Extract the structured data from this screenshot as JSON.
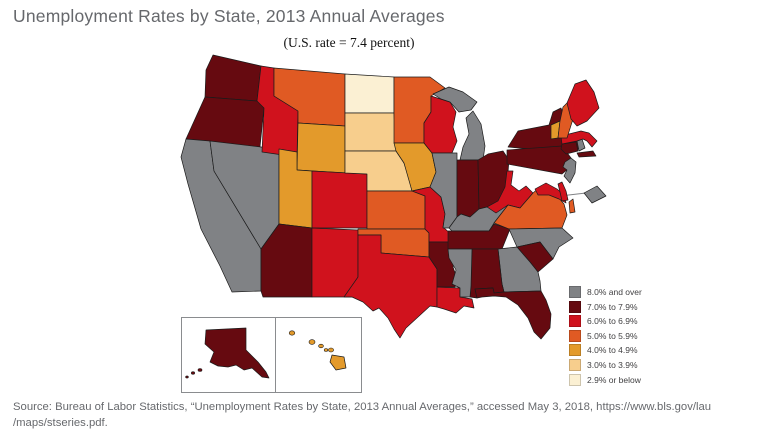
{
  "title": "Unemployment Rates by State, 2013 Annual Averages",
  "subtitle": "(U.S. rate = 7.4 percent)",
  "source": {
    "line1": "Source: Bureau of Labor Statistics, “Unemployment Rates by State, 2013 Annual Averages,” accessed May 3, 2018, https://www.bls.gov/lau",
    "line2": "/maps/stseries.pdf."
  },
  "legend": {
    "items": [
      {
        "label": "8.0% and over",
        "color": "#808285"
      },
      {
        "label": "7.0% to 7.9%",
        "color": "#660A10"
      },
      {
        "label": "6.0% to 6.9%",
        "color": "#D0121D"
      },
      {
        "label": "5.0% to 5.9%",
        "color": "#E05A23"
      },
      {
        "label": "4.0% to 4.9%",
        "color": "#E39A2B"
      },
      {
        "label": "3.0% to 3.9%",
        "color": "#F7CE8D"
      },
      {
        "label": "2.9% or below",
        "color": "#FBF0D3"
      }
    ]
  },
  "chart_data": {
    "type": "choropleth",
    "region": "United States, by state (with Alaska and Hawaii insets, District of Columbia callout)",
    "title": "Unemployment Rates by State, 2013 Annual Averages",
    "subtitle": "(U.S. rate = 7.4 percent)",
    "unit": "unemployment rate, percent, 2013 annual average",
    "us_rate": 7.4,
    "categories": [
      "8.0% and over",
      "7.0% to 7.9%",
      "6.0% to 6.9%",
      "5.0% to 5.9%",
      "4.0% to 4.9%",
      "3.0% to 3.9%",
      "2.9% or below"
    ],
    "category_colors": [
      "#808285",
      "#660A10",
      "#D0121D",
      "#E05A23",
      "#E39A2B",
      "#F7CE8D",
      "#FBF0D3"
    ],
    "legend_position": "lower right",
    "states": {
      "AL": "7.0% to 7.9%",
      "AK": "7.0% to 7.9%",
      "AZ": "7.0% to 7.9%",
      "AR": "7.0% to 7.9%",
      "CA": "8.0% and over",
      "CO": "6.0% to 6.9%",
      "CT": "7.0% to 7.9%",
      "DE": "6.0% to 6.9%",
      "DC": "8.0% and over",
      "FL": "7.0% to 7.9%",
      "GA": "8.0% and over",
      "HI": "4.0% to 4.9%",
      "ID": "6.0% to 6.9%",
      "IL": "8.0% and over",
      "IN": "7.0% to 7.9%",
      "IA": "4.0% to 4.9%",
      "KS": "5.0% to 5.9%",
      "KY": "8.0% and over",
      "LA": "6.0% to 6.9%",
      "ME": "6.0% to 6.9%",
      "MD": "6.0% to 6.9%",
      "MA": "6.0% to 6.9%",
      "MI": "8.0% and over",
      "MN": "5.0% to 5.9%",
      "MS": "8.0% and over",
      "MO": "6.0% to 6.9%",
      "MT": "5.0% to 5.9%",
      "NE": "3.0% to 3.9%",
      "NV": "8.0% and over",
      "NH": "5.0% to 5.9%",
      "NJ": "8.0% and over",
      "NM": "6.0% to 6.9%",
      "NY": "7.0% to 7.9%",
      "NC": "8.0% and over",
      "ND": "2.9% or below",
      "OH": "7.0% to 7.9%",
      "OK": "5.0% to 5.9%",
      "OR": "7.0% to 7.9%",
      "PA": "7.0% to 7.9%",
      "RI": "8.0% and over",
      "SC": "7.0% to 7.9%",
      "SD": "3.0% to 3.9%",
      "TN": "7.0% to 7.9%",
      "TX": "6.0% to 6.9%",
      "UT": "4.0% to 4.9%",
      "VT": "4.0% to 4.9%",
      "VA": "5.0% to 5.9%",
      "WA": "7.0% to 7.9%",
      "WV": "6.0% to 6.9%",
      "WI": "6.0% to 6.9%",
      "WY": "4.0% to 4.9%"
    }
  }
}
